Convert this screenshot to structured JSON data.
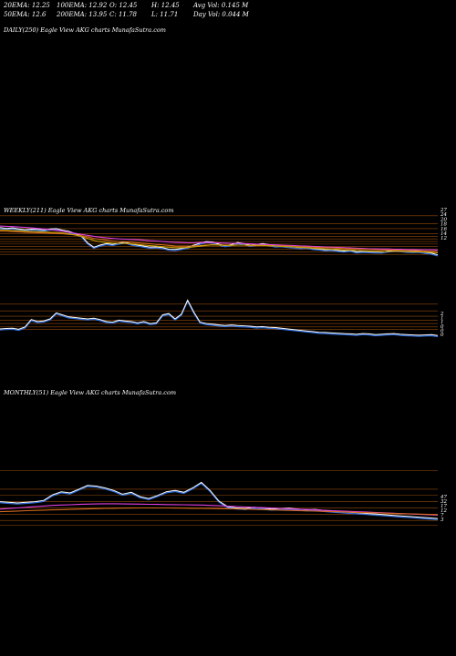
{
  "header": {
    "row1": [
      "20EMA: 12.25",
      "100EMA: 12.92",
      "O: 12.45",
      "H: 12.45",
      "Avg Vol: 0.145 M"
    ],
    "row2": [
      "50EMA: 12.6",
      "200EMA: 13.95",
      "C: 11.78",
      "L: 11.71",
      "Day Vol: 0.044  M"
    ]
  },
  "panels": {
    "daily": {
      "label": "DAILY(250) Eagle   View  AKG charts MunafaSutra.com"
    },
    "weekly": {
      "label": "WEEKLY(211) Eagle   View  AKG charts MunafaSutra.com"
    },
    "monthly": {
      "label": "MONTHLY(51) Eagle   View  AKG charts MunafaSutra.com"
    }
  },
  "colors": {
    "background": "#000000",
    "price": "#ffffff",
    "price_low": "#2f6fe0",
    "ema_magenta": "#e040e0",
    "ema_orange": "#d2691e",
    "ema_gold": "#c8a000",
    "level_lines": "#b05a10",
    "axis_text": "#ffffff"
  },
  "chart_data": [
    {
      "type": "line",
      "panel": "weekly-price",
      "y_ticks": [
        "27",
        "24",
        "20",
        "18",
        "16",
        "14",
        "12"
      ],
      "series": [
        {
          "values": [
            22.4,
            22.1,
            22.3,
            21.9,
            21.6,
            21.8,
            21.7,
            21.5,
            21.9,
            22.0,
            21.4,
            21.0,
            20.1,
            19.3,
            16.5,
            14.8,
            15.6,
            16.2,
            15.9,
            16.4,
            16.8,
            16.0,
            15.6,
            15.2,
            14.8,
            14.9,
            14.6,
            14.0,
            13.9,
            14.3,
            14.8,
            15.6,
            16.4,
            17.0,
            16.8,
            16.0,
            15.4,
            15.8,
            16.6,
            16.2,
            15.6,
            15.9,
            16.2,
            15.8,
            15.3,
            15.4,
            15.1,
            14.9,
            14.6,
            14.8,
            14.3,
            14.1,
            13.8,
            13.9,
            13.5,
            13.3,
            13.6,
            13.0,
            13.2,
            13.1,
            13.0,
            12.9,
            13.3,
            13.6,
            13.5,
            13.2,
            13.1,
            13.2,
            12.8,
            12.5,
            11.8
          ]
        },
        {
          "values": [
            23.0,
            22.9,
            22.8,
            22.6,
            22.5,
            22.3,
            22.1,
            21.9,
            21.6,
            21.3,
            21.0,
            20.6,
            20.2,
            19.8,
            19.4,
            19.0,
            18.7,
            18.4,
            18.2,
            18.0,
            17.9,
            17.8,
            17.7,
            17.5,
            17.3,
            17.2,
            17.0,
            16.8,
            16.7,
            16.6,
            16.5,
            16.5,
            16.6,
            16.6,
            16.6,
            16.5,
            16.4,
            16.3,
            16.3,
            16.2,
            16.1,
            16.0,
            15.9,
            15.8,
            15.7,
            15.6,
            15.5,
            15.4,
            15.3,
            15.2,
            15.1,
            15.0,
            14.9,
            14.8,
            14.7,
            14.6,
            14.5,
            14.4,
            14.3,
            14.2,
            14.2,
            14.1,
            14.1,
            14.0,
            14.0,
            13.9,
            13.9,
            13.8,
            13.8,
            13.8,
            13.7
          ]
        },
        {
          "values": [
            21.0,
            20.9,
            20.8,
            20.7,
            20.6,
            20.5,
            20.4,
            20.3,
            20.2,
            20.1,
            20.0,
            19.8,
            19.6,
            19.3,
            18.8,
            18.2,
            17.8,
            17.5,
            17.2,
            17.0,
            16.9,
            16.7,
            16.5,
            16.3,
            16.1,
            15.9,
            15.7,
            15.5,
            15.3,
            15.2,
            15.2,
            15.3,
            15.4,
            15.6,
            15.7,
            15.7,
            15.6,
            15.6,
            15.6,
            15.6,
            15.5,
            15.5,
            15.5,
            15.4,
            15.3,
            15.3,
            15.2,
            15.1,
            15.0,
            14.9,
            14.8,
            14.7,
            14.6,
            14.5,
            14.4,
            14.3,
            14.2,
            14.1,
            14.0,
            13.9,
            13.8,
            13.7,
            13.7,
            13.7,
            13.6,
            13.5,
            13.5,
            13.4,
            13.3,
            13.2,
            13.1
          ]
        },
        {
          "values": [
            21.5,
            21.4,
            21.3,
            21.2,
            21.0,
            20.9,
            20.8,
            20.7,
            20.6,
            20.5,
            20.3,
            20.0,
            19.5,
            19.0,
            18.2,
            17.4,
            16.9,
            16.6,
            16.4,
            16.3,
            16.3,
            16.1,
            15.9,
            15.6,
            15.4,
            15.2,
            15.0,
            14.8,
            14.6,
            14.6,
            14.7,
            14.9,
            15.2,
            15.5,
            15.7,
            15.6,
            15.5,
            15.5,
            15.6,
            15.6,
            15.5,
            15.5,
            15.5,
            15.4,
            15.2,
            15.1,
            15.0,
            14.9,
            14.7,
            14.6,
            14.4,
            14.3,
            14.1,
            14.0,
            13.9,
            13.7,
            13.7,
            13.5,
            13.4,
            13.3,
            13.2,
            13.1,
            13.1,
            13.2,
            13.2,
            13.1,
            13.0,
            13.0,
            12.9,
            12.8,
            12.6
          ]
        }
      ],
      "levels": [
        27,
        24,
        22,
        20,
        19,
        18,
        17,
        16,
        15,
        14,
        13,
        12
      ]
    },
    {
      "type": "line",
      "panel": "weekly-volume",
      "y_ticks": [
        "2",
        "1",
        "1",
        "0",
        "0",
        "0"
      ],
      "series": [
        {
          "values": [
            0.15,
            0.18,
            0.2,
            0.12,
            0.3,
            0.85,
            0.7,
            0.75,
            0.9,
            1.35,
            1.2,
            1.05,
            1.0,
            0.95,
            0.9,
            0.95,
            0.85,
            0.7,
            0.65,
            0.8,
            0.75,
            0.7,
            0.6,
            0.7,
            0.55,
            0.6,
            1.2,
            1.3,
            0.9,
            1.25,
            2.3,
            1.4,
            0.65,
            0.55,
            0.5,
            0.45,
            0.4,
            0.45,
            0.4,
            0.38,
            0.35,
            0.3,
            0.32,
            0.28,
            0.25,
            0.2,
            0.15,
            0.1,
            0.05,
            0.0,
            -0.05,
            -0.1,
            -0.12,
            -0.15,
            -0.18,
            -0.2,
            -0.22,
            -0.25,
            -0.2,
            -0.22,
            -0.28,
            -0.25,
            -0.22,
            -0.2,
            -0.25,
            -0.28,
            -0.3,
            -0.32,
            -0.3,
            -0.28,
            -0.35
          ]
        }
      ],
      "levels": [
        2.0,
        1.5,
        1.1,
        0.8,
        0.55,
        0.3,
        0.1
      ]
    },
    {
      "type": "line",
      "panel": "monthly",
      "y_ticks": [
        "47",
        "32",
        "17",
        "12",
        "7",
        "3"
      ],
      "series": [
        {
          "values": [
            22.0,
            21.5,
            21.0,
            21.5,
            22.0,
            23.0,
            27.5,
            30.0,
            29.0,
            32.0,
            35.0,
            34.5,
            33.0,
            31.0,
            28.0,
            29.5,
            26.0,
            24.5,
            27.0,
            30.0,
            31.0,
            29.5,
            33.0,
            37.5,
            31.0,
            22.5,
            18.0,
            17.0,
            16.5,
            17.5,
            17.0,
            16.0,
            16.5,
            16.8,
            16.0,
            15.5,
            15.8,
            15.0,
            14.5,
            14.0,
            13.5,
            13.0,
            12.5,
            12.0,
            11.5,
            11.0,
            10.5,
            10.0,
            9.5,
            9.0,
            8.5
          ]
        },
        {
          "values": [
            16.0,
            16.5,
            17.0,
            17.5,
            18.0,
            18.5,
            19.0,
            19.3,
            19.5,
            19.8,
            20.0,
            20.2,
            20.3,
            20.3,
            20.2,
            20.1,
            20.0,
            19.9,
            19.8,
            19.7,
            19.6,
            19.5,
            19.4,
            19.3,
            19.0,
            18.7,
            18.4,
            18.1,
            17.8,
            17.5,
            17.2,
            16.9,
            16.6,
            16.3,
            16.0,
            15.7,
            15.4,
            15.1,
            14.8,
            14.5,
            14.2,
            13.9,
            13.6,
            13.3,
            13.0,
            12.7,
            12.4,
            12.1,
            11.8,
            11.5,
            11.2
          ]
        },
        {
          "values": [
            14.0,
            14.2,
            14.5,
            14.8,
            15.0,
            15.2,
            15.4,
            15.6,
            15.8,
            16.0,
            16.2,
            16.4,
            16.6,
            16.7,
            16.8,
            16.9,
            17.0,
            17.0,
            17.0,
            17.0,
            16.9,
            16.8,
            16.7,
            16.6,
            16.5,
            16.4,
            16.3,
            16.2,
            16.0,
            15.8,
            15.6,
            15.4,
            15.2,
            15.0,
            14.8,
            14.6,
            14.4,
            14.2,
            14.0,
            13.8,
            13.6,
            13.4,
            13.2,
            13.0,
            12.8,
            12.6,
            12.4,
            12.2,
            12.0,
            11.8,
            11.6
          ]
        }
      ],
      "levels": [
        47,
        32,
        27,
        22,
        17,
        12,
        7,
        3
      ]
    }
  ]
}
